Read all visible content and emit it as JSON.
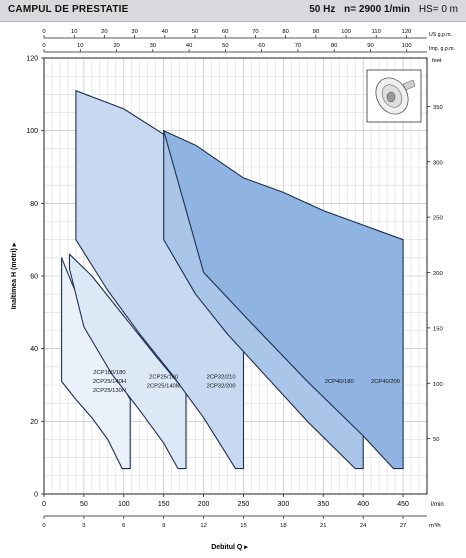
{
  "header": {
    "title": "CAMPUL DE PRESTATIE",
    "freq": "50 Hz",
    "speed": "n= 2900  1/min",
    "hs": "HS= 0 m"
  },
  "chart_data": {
    "type": "area",
    "xlabel": "Debitul Q",
    "ylabel": "Inaltimea H (metri)",
    "x_units": [
      "l/min",
      "m³/h"
    ],
    "top_axes": [
      {
        "unit": "US g.p.m.",
        "ticks": [
          "0",
          "10",
          "20",
          "30",
          "40",
          "50",
          "60",
          "70",
          "80",
          "90",
          "100",
          "110",
          "120"
        ]
      },
      {
        "unit": "Imp. g.p.m.",
        "ticks": [
          "0",
          "10",
          "20",
          "30",
          "40",
          "50",
          "60",
          "70",
          "80",
          "90",
          "100"
        ]
      }
    ],
    "x_ticks_lmin": [
      "0",
      "50",
      "100",
      "150",
      "200",
      "250",
      "300",
      "350",
      "400",
      "450"
    ],
    "x_ticks_m3h": [
      "0",
      "3",
      "6",
      "9",
      "12",
      "15",
      "18",
      "21",
      "24",
      "27"
    ],
    "y_ticks_m": [
      "0",
      "20",
      "40",
      "60",
      "80",
      "100",
      "120"
    ],
    "y_ticks_feet": [
      "50",
      "100",
      "150",
      "200",
      "250",
      "300",
      "350"
    ],
    "right_unit": "feet",
    "xlim": [
      0,
      480
    ],
    "ylim": [
      0,
      120
    ],
    "grid": true,
    "regions": [
      {
        "labels": [
          "2CP180/180",
          "2CP25/140H",
          "2CP25/130N"
        ],
        "colour": "#eaf1fa",
        "points": [
          [
            22,
            31
          ],
          [
            22,
            65
          ],
          [
            35,
            58
          ],
          [
            60,
            46
          ],
          [
            85,
            35
          ],
          [
            108,
            26
          ],
          [
            108,
            7
          ],
          [
            98,
            7
          ],
          [
            80,
            15
          ],
          [
            60,
            21
          ],
          [
            40,
            26
          ]
        ]
      },
      {
        "labels": [
          "2CP25/160",
          "2CP25/140M"
        ],
        "colour": "#dde8f6",
        "points": [
          [
            32,
            62
          ],
          [
            32,
            66
          ],
          [
            60,
            60
          ],
          [
            100,
            49
          ],
          [
            140,
            38
          ],
          [
            178,
            28
          ],
          [
            178,
            7
          ],
          [
            168,
            7
          ],
          [
            150,
            14
          ],
          [
            120,
            23
          ],
          [
            85,
            33
          ],
          [
            50,
            46
          ]
        ]
      },
      {
        "labels": [
          "2CP32/210",
          "2CP32/200"
        ],
        "colour": "#c6d9f0",
        "points": [
          [
            40,
            70
          ],
          [
            40,
            111
          ],
          [
            100,
            106
          ],
          [
            150,
            99
          ],
          [
            190,
            89
          ],
          [
            220,
            81
          ],
          [
            250,
            74
          ],
          [
            250,
            7
          ],
          [
            240,
            7
          ],
          [
            200,
            21
          ],
          [
            160,
            33
          ],
          [
            120,
            44
          ],
          [
            80,
            56
          ]
        ]
      },
      {
        "labels": [
          "2CP40/180"
        ],
        "colour": "#a9c5e8",
        "points": [
          [
            150,
            70
          ],
          [
            150,
            100
          ],
          [
            200,
            92
          ],
          [
            250,
            78
          ],
          [
            300,
            72
          ],
          [
            350,
            67
          ],
          [
            400,
            60
          ],
          [
            400,
            7
          ],
          [
            390,
            7
          ],
          [
            330,
            20
          ],
          [
            280,
            32
          ],
          [
            230,
            44
          ],
          [
            190,
            55
          ]
        ]
      },
      {
        "labels": [
          "2CP40/200"
        ],
        "colour": "#8fb4e1",
        "points": [
          [
            150,
            100
          ],
          [
            190,
            96
          ],
          [
            250,
            87
          ],
          [
            300,
            83
          ],
          [
            350,
            78
          ],
          [
            400,
            74
          ],
          [
            450,
            70
          ],
          [
            450,
            7
          ],
          [
            438,
            7
          ],
          [
            400,
            16
          ],
          [
            330,
            31
          ],
          [
            260,
            47
          ],
          [
            200,
            61
          ]
        ]
      }
    ]
  }
}
